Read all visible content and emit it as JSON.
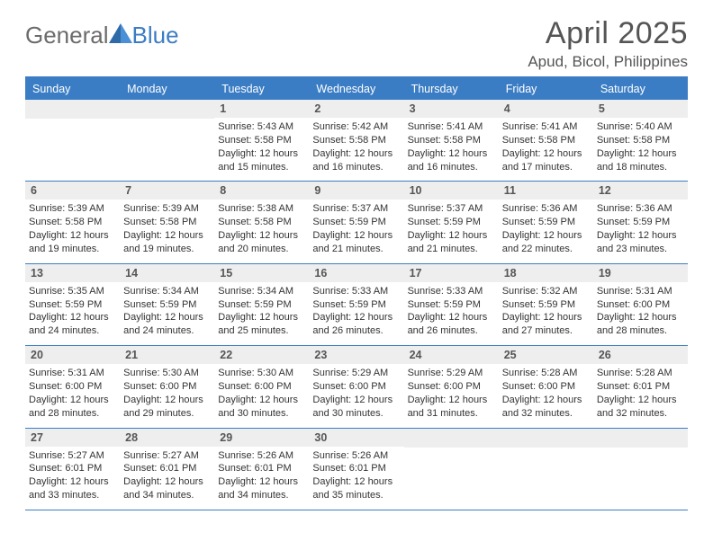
{
  "logo": {
    "text1": "General",
    "text2": "Blue"
  },
  "colors": {
    "brand_blue": "#3b7dc4",
    "header_gray": "#555555",
    "row_gray": "#eeeeee",
    "text": "#333333",
    "logo_gray": "#6b6b6b",
    "bg": "#ffffff"
  },
  "typography": {
    "month_fontsize": 34,
    "location_fontsize": 17,
    "weekday_fontsize": 12.5,
    "daynum_fontsize": 12.5,
    "body_fontsize": 11
  },
  "title": "April 2025",
  "location": "Apud, Bicol, Philippines",
  "weekdays": [
    "Sunday",
    "Monday",
    "Tuesday",
    "Wednesday",
    "Thursday",
    "Friday",
    "Saturday"
  ],
  "weeks": [
    [
      {
        "n": "",
        "sunrise": "",
        "sunset": "",
        "daylight": ""
      },
      {
        "n": "",
        "sunrise": "",
        "sunset": "",
        "daylight": ""
      },
      {
        "n": "1",
        "sunrise": "Sunrise: 5:43 AM",
        "sunset": "Sunset: 5:58 PM",
        "daylight": "Daylight: 12 hours and 15 minutes."
      },
      {
        "n": "2",
        "sunrise": "Sunrise: 5:42 AM",
        "sunset": "Sunset: 5:58 PM",
        "daylight": "Daylight: 12 hours and 16 minutes."
      },
      {
        "n": "3",
        "sunrise": "Sunrise: 5:41 AM",
        "sunset": "Sunset: 5:58 PM",
        "daylight": "Daylight: 12 hours and 16 minutes."
      },
      {
        "n": "4",
        "sunrise": "Sunrise: 5:41 AM",
        "sunset": "Sunset: 5:58 PM",
        "daylight": "Daylight: 12 hours and 17 minutes."
      },
      {
        "n": "5",
        "sunrise": "Sunrise: 5:40 AM",
        "sunset": "Sunset: 5:58 PM",
        "daylight": "Daylight: 12 hours and 18 minutes."
      }
    ],
    [
      {
        "n": "6",
        "sunrise": "Sunrise: 5:39 AM",
        "sunset": "Sunset: 5:58 PM",
        "daylight": "Daylight: 12 hours and 19 minutes."
      },
      {
        "n": "7",
        "sunrise": "Sunrise: 5:39 AM",
        "sunset": "Sunset: 5:58 PM",
        "daylight": "Daylight: 12 hours and 19 minutes."
      },
      {
        "n": "8",
        "sunrise": "Sunrise: 5:38 AM",
        "sunset": "Sunset: 5:58 PM",
        "daylight": "Daylight: 12 hours and 20 minutes."
      },
      {
        "n": "9",
        "sunrise": "Sunrise: 5:37 AM",
        "sunset": "Sunset: 5:59 PM",
        "daylight": "Daylight: 12 hours and 21 minutes."
      },
      {
        "n": "10",
        "sunrise": "Sunrise: 5:37 AM",
        "sunset": "Sunset: 5:59 PM",
        "daylight": "Daylight: 12 hours and 21 minutes."
      },
      {
        "n": "11",
        "sunrise": "Sunrise: 5:36 AM",
        "sunset": "Sunset: 5:59 PM",
        "daylight": "Daylight: 12 hours and 22 minutes."
      },
      {
        "n": "12",
        "sunrise": "Sunrise: 5:36 AM",
        "sunset": "Sunset: 5:59 PM",
        "daylight": "Daylight: 12 hours and 23 minutes."
      }
    ],
    [
      {
        "n": "13",
        "sunrise": "Sunrise: 5:35 AM",
        "sunset": "Sunset: 5:59 PM",
        "daylight": "Daylight: 12 hours and 24 minutes."
      },
      {
        "n": "14",
        "sunrise": "Sunrise: 5:34 AM",
        "sunset": "Sunset: 5:59 PM",
        "daylight": "Daylight: 12 hours and 24 minutes."
      },
      {
        "n": "15",
        "sunrise": "Sunrise: 5:34 AM",
        "sunset": "Sunset: 5:59 PM",
        "daylight": "Daylight: 12 hours and 25 minutes."
      },
      {
        "n": "16",
        "sunrise": "Sunrise: 5:33 AM",
        "sunset": "Sunset: 5:59 PM",
        "daylight": "Daylight: 12 hours and 26 minutes."
      },
      {
        "n": "17",
        "sunrise": "Sunrise: 5:33 AM",
        "sunset": "Sunset: 5:59 PM",
        "daylight": "Daylight: 12 hours and 26 minutes."
      },
      {
        "n": "18",
        "sunrise": "Sunrise: 5:32 AM",
        "sunset": "Sunset: 5:59 PM",
        "daylight": "Daylight: 12 hours and 27 minutes."
      },
      {
        "n": "19",
        "sunrise": "Sunrise: 5:31 AM",
        "sunset": "Sunset: 6:00 PM",
        "daylight": "Daylight: 12 hours and 28 minutes."
      }
    ],
    [
      {
        "n": "20",
        "sunrise": "Sunrise: 5:31 AM",
        "sunset": "Sunset: 6:00 PM",
        "daylight": "Daylight: 12 hours and 28 minutes."
      },
      {
        "n": "21",
        "sunrise": "Sunrise: 5:30 AM",
        "sunset": "Sunset: 6:00 PM",
        "daylight": "Daylight: 12 hours and 29 minutes."
      },
      {
        "n": "22",
        "sunrise": "Sunrise: 5:30 AM",
        "sunset": "Sunset: 6:00 PM",
        "daylight": "Daylight: 12 hours and 30 minutes."
      },
      {
        "n": "23",
        "sunrise": "Sunrise: 5:29 AM",
        "sunset": "Sunset: 6:00 PM",
        "daylight": "Daylight: 12 hours and 30 minutes."
      },
      {
        "n": "24",
        "sunrise": "Sunrise: 5:29 AM",
        "sunset": "Sunset: 6:00 PM",
        "daylight": "Daylight: 12 hours and 31 minutes."
      },
      {
        "n": "25",
        "sunrise": "Sunrise: 5:28 AM",
        "sunset": "Sunset: 6:00 PM",
        "daylight": "Daylight: 12 hours and 32 minutes."
      },
      {
        "n": "26",
        "sunrise": "Sunrise: 5:28 AM",
        "sunset": "Sunset: 6:01 PM",
        "daylight": "Daylight: 12 hours and 32 minutes."
      }
    ],
    [
      {
        "n": "27",
        "sunrise": "Sunrise: 5:27 AM",
        "sunset": "Sunset: 6:01 PM",
        "daylight": "Daylight: 12 hours and 33 minutes."
      },
      {
        "n": "28",
        "sunrise": "Sunrise: 5:27 AM",
        "sunset": "Sunset: 6:01 PM",
        "daylight": "Daylight: 12 hours and 34 minutes."
      },
      {
        "n": "29",
        "sunrise": "Sunrise: 5:26 AM",
        "sunset": "Sunset: 6:01 PM",
        "daylight": "Daylight: 12 hours and 34 minutes."
      },
      {
        "n": "30",
        "sunrise": "Sunrise: 5:26 AM",
        "sunset": "Sunset: 6:01 PM",
        "daylight": "Daylight: 12 hours and 35 minutes."
      },
      {
        "n": "",
        "sunrise": "",
        "sunset": "",
        "daylight": ""
      },
      {
        "n": "",
        "sunrise": "",
        "sunset": "",
        "daylight": ""
      },
      {
        "n": "",
        "sunrise": "",
        "sunset": "",
        "daylight": ""
      }
    ]
  ]
}
